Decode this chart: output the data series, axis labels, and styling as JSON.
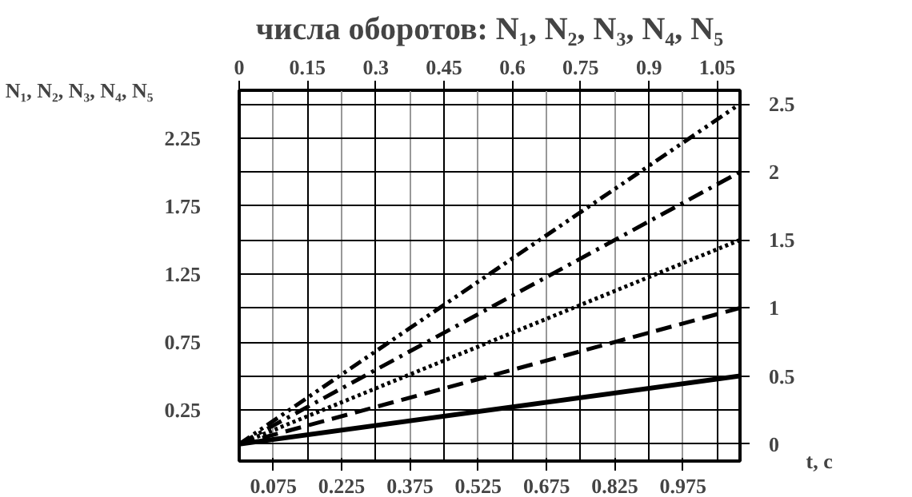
{
  "chart_data": {
    "type": "line",
    "title": "числа оборотов: N₁, N₂, N₃, N₄, N₅",
    "ylabel": "N₁, N₂, N₃, N₄, N₅",
    "xlabel": "t, с",
    "x": [
      0,
      1.1
    ],
    "series": [
      {
        "color": "#000000",
        "line_style": "solid",
        "values": [
          0,
          0.5
        ]
      },
      {
        "color": "#000000",
        "line_style": "dashed",
        "values": [
          0,
          1
        ]
      },
      {
        "color": "#000000",
        "line_style": "dotted",
        "values": [
          0,
          1.5
        ]
      },
      {
        "color": "#000000",
        "line_style": "dashdot",
        "values": [
          0,
          2
        ]
      },
      {
        "color": "#000000",
        "line_style": "dashdotdot",
        "values": [
          0,
          2.5
        ]
      }
    ],
    "xlim": [
      0,
      1.1
    ],
    "xticks": [
      0.075,
      0.225,
      0.375,
      0.525,
      0.675,
      0.825,
      0.975
    ],
    "x2lim": [
      0,
      1.1
    ],
    "x2ticks": [
      0,
      0.15,
      0.3,
      0.45,
      0.6,
      0.75,
      0.9,
      1.05
    ],
    "ylim": [
      -0.125,
      2.6
    ],
    "yticks": [
      0.25,
      0.75,
      1.25,
      1.75,
      2.25
    ],
    "y2lim": [
      -0.125,
      2.6
    ],
    "y2ticks": [
      0,
      0.5,
      1,
      1.5,
      2,
      2.5
    ],
    "grid": true,
    "marker": "none"
  }
}
